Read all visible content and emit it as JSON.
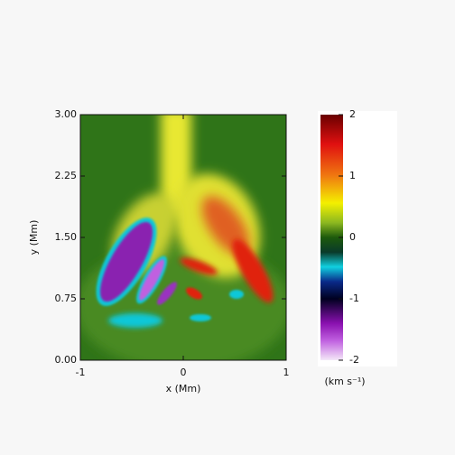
{
  "chart_data": {
    "type": "heatmap",
    "x_label": "x (Mm)",
    "y_label": "y (Mm)",
    "xlim": [
      -1,
      1
    ],
    "xticks": [
      -1,
      0,
      1
    ],
    "ylim": [
      0,
      3
    ],
    "yticks": [
      {
        "value": 0,
        "label": "0.00"
      },
      {
        "value": 0.75,
        "label": "0.75"
      },
      {
        "value": 1.5,
        "label": "1.50"
      },
      {
        "value": 2.25,
        "label": "2.25"
      },
      {
        "value": 3,
        "label": "3.00"
      }
    ],
    "colorbar": {
      "label": "(km s⁻¹)",
      "lim": [
        -2,
        2
      ],
      "ticks": [
        2,
        1,
        0,
        -1,
        -2
      ]
    }
  }
}
